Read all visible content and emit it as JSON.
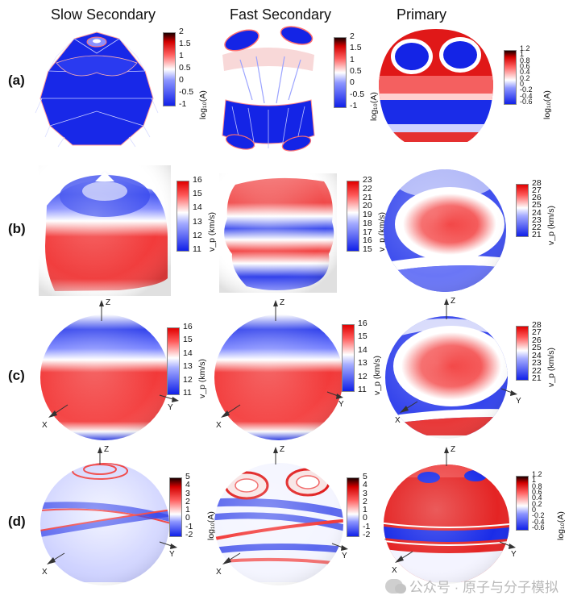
{
  "columns": {
    "slow": "Slow Secondary",
    "fast": "Fast Secondary",
    "primary": "Primary"
  },
  "rows": {
    "a": "(a)",
    "b": "(b)",
    "c": "(c)",
    "d": "(d)"
  },
  "units": {
    "amp": "log₁₀(A)",
    "vel": "v_p (km/s)"
  },
  "axes": {
    "x": "X",
    "y": "Y",
    "z": "Z"
  },
  "colorbars": {
    "a1": [
      "2",
      "1.5",
      "1",
      "0.5",
      "0",
      "-0.5",
      "-1"
    ],
    "a2": [
      "2",
      "1.5",
      "1",
      "0.5",
      "0",
      "-0.5",
      "-1"
    ],
    "a3": [
      "1.2",
      "1",
      "0.8",
      "0.6",
      "0.4",
      "0.2",
      "0",
      "-0.2",
      "-0.4",
      "-0.6"
    ],
    "b1": [
      "16",
      "15",
      "14",
      "13",
      "12",
      "11"
    ],
    "b2": [
      "23",
      "22",
      "21",
      "20",
      "19",
      "18",
      "17",
      "16",
      "15"
    ],
    "b3": [
      "28",
      "27",
      "26",
      "25",
      "24",
      "23",
      "22",
      "21"
    ],
    "c1": [
      "16",
      "15",
      "14",
      "13",
      "12",
      "11"
    ],
    "c2": [
      "16",
      "15",
      "14",
      "13",
      "12",
      "11"
    ],
    "c3": [
      "28",
      "27",
      "26",
      "25",
      "24",
      "23",
      "22",
      "21"
    ],
    "d1": [
      "5",
      "4",
      "3",
      "2",
      "1",
      "0",
      "-1",
      "-2"
    ],
    "d2": [
      "5",
      "4",
      "3",
      "2",
      "1",
      "0",
      "-1",
      "-2"
    ],
    "d3": [
      "1.2",
      "1",
      "0.8",
      "0.6",
      "0.4",
      "0.2",
      "0",
      "-0.2",
      "-0.4",
      "-0.6"
    ]
  },
  "watermark": "公众号 · 原子与分子模拟",
  "colors": {
    "blue": "#1c2fe0",
    "red": "#e21c1c",
    "white": "#ffffff",
    "dark": "#220000"
  }
}
